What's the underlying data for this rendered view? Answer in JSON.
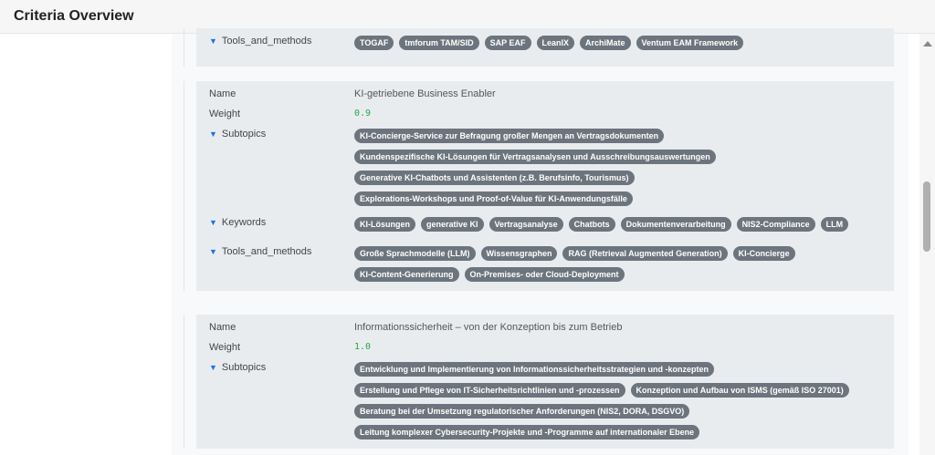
{
  "header": {
    "title": "Criteria Overview"
  },
  "labels": {
    "name": "Name",
    "weight": "Weight",
    "subtopics": "Subtopics",
    "keywords": "Keywords",
    "tools": "Tools_and_methods"
  },
  "items": [
    {
      "tools": [
        "TOGAF",
        "tmforum TAM/SID",
        "SAP EAF",
        "LeanIX",
        "ArchiMate",
        "Ventum EAM Framework"
      ]
    },
    {
      "name": "KI-getriebene Business Enabler",
      "weight": "0.9",
      "subtopics": [
        "KI-Concierge-Service zur Befragung großer Mengen an Vertragsdokumenten",
        "Kundenspezifische KI-Lösungen für Vertragsanalysen und Ausschreibungsauswertungen",
        "Generative KI-Chatbots und Assistenten (z.B. Berufsinfo, Tourismus)",
        "Explorations-Workshops und Proof-of-Value für KI-Anwendungsfälle"
      ],
      "keywords": [
        "KI-Lösungen",
        "generative KI",
        "Vertragsanalyse",
        "Chatbots",
        "Dokumentenverarbeitung",
        "NIS2-Compliance",
        "LLM"
      ],
      "tools": [
        "Große Sprachmodelle (LLM)",
        "Wissensgraphen",
        "RAG (Retrieval Augmented Generation)",
        "KI-Concierge",
        "KI-Content-Generierung",
        "On-Premises- oder Cloud-Deployment"
      ]
    },
    {
      "name": "Informationssicherheit – von der Konzeption bis zum Betrieb",
      "weight": "1.0",
      "subtopics": [
        "Entwicklung und Implementierung von Informationssicherheitsstrategien und -konzepten",
        "Erstellung und Pflege von IT-Sicherheitsrichtlinien und -prozessen",
        "Konzeption und Aufbau von ISMS (gemäß ISO 27001)",
        "Beratung bei der Umsetzung regulatorischer Anforderungen (NIS2, DORA, DSGVO)",
        "Leitung komplexer Cybersecurity-Projekte und -Programme auf internationaler Ebene"
      ]
    }
  ],
  "colors": {
    "pill": "#6c757d",
    "weight": "#28a745",
    "arrow": "#1a73e8",
    "box": "#e9ecef"
  }
}
